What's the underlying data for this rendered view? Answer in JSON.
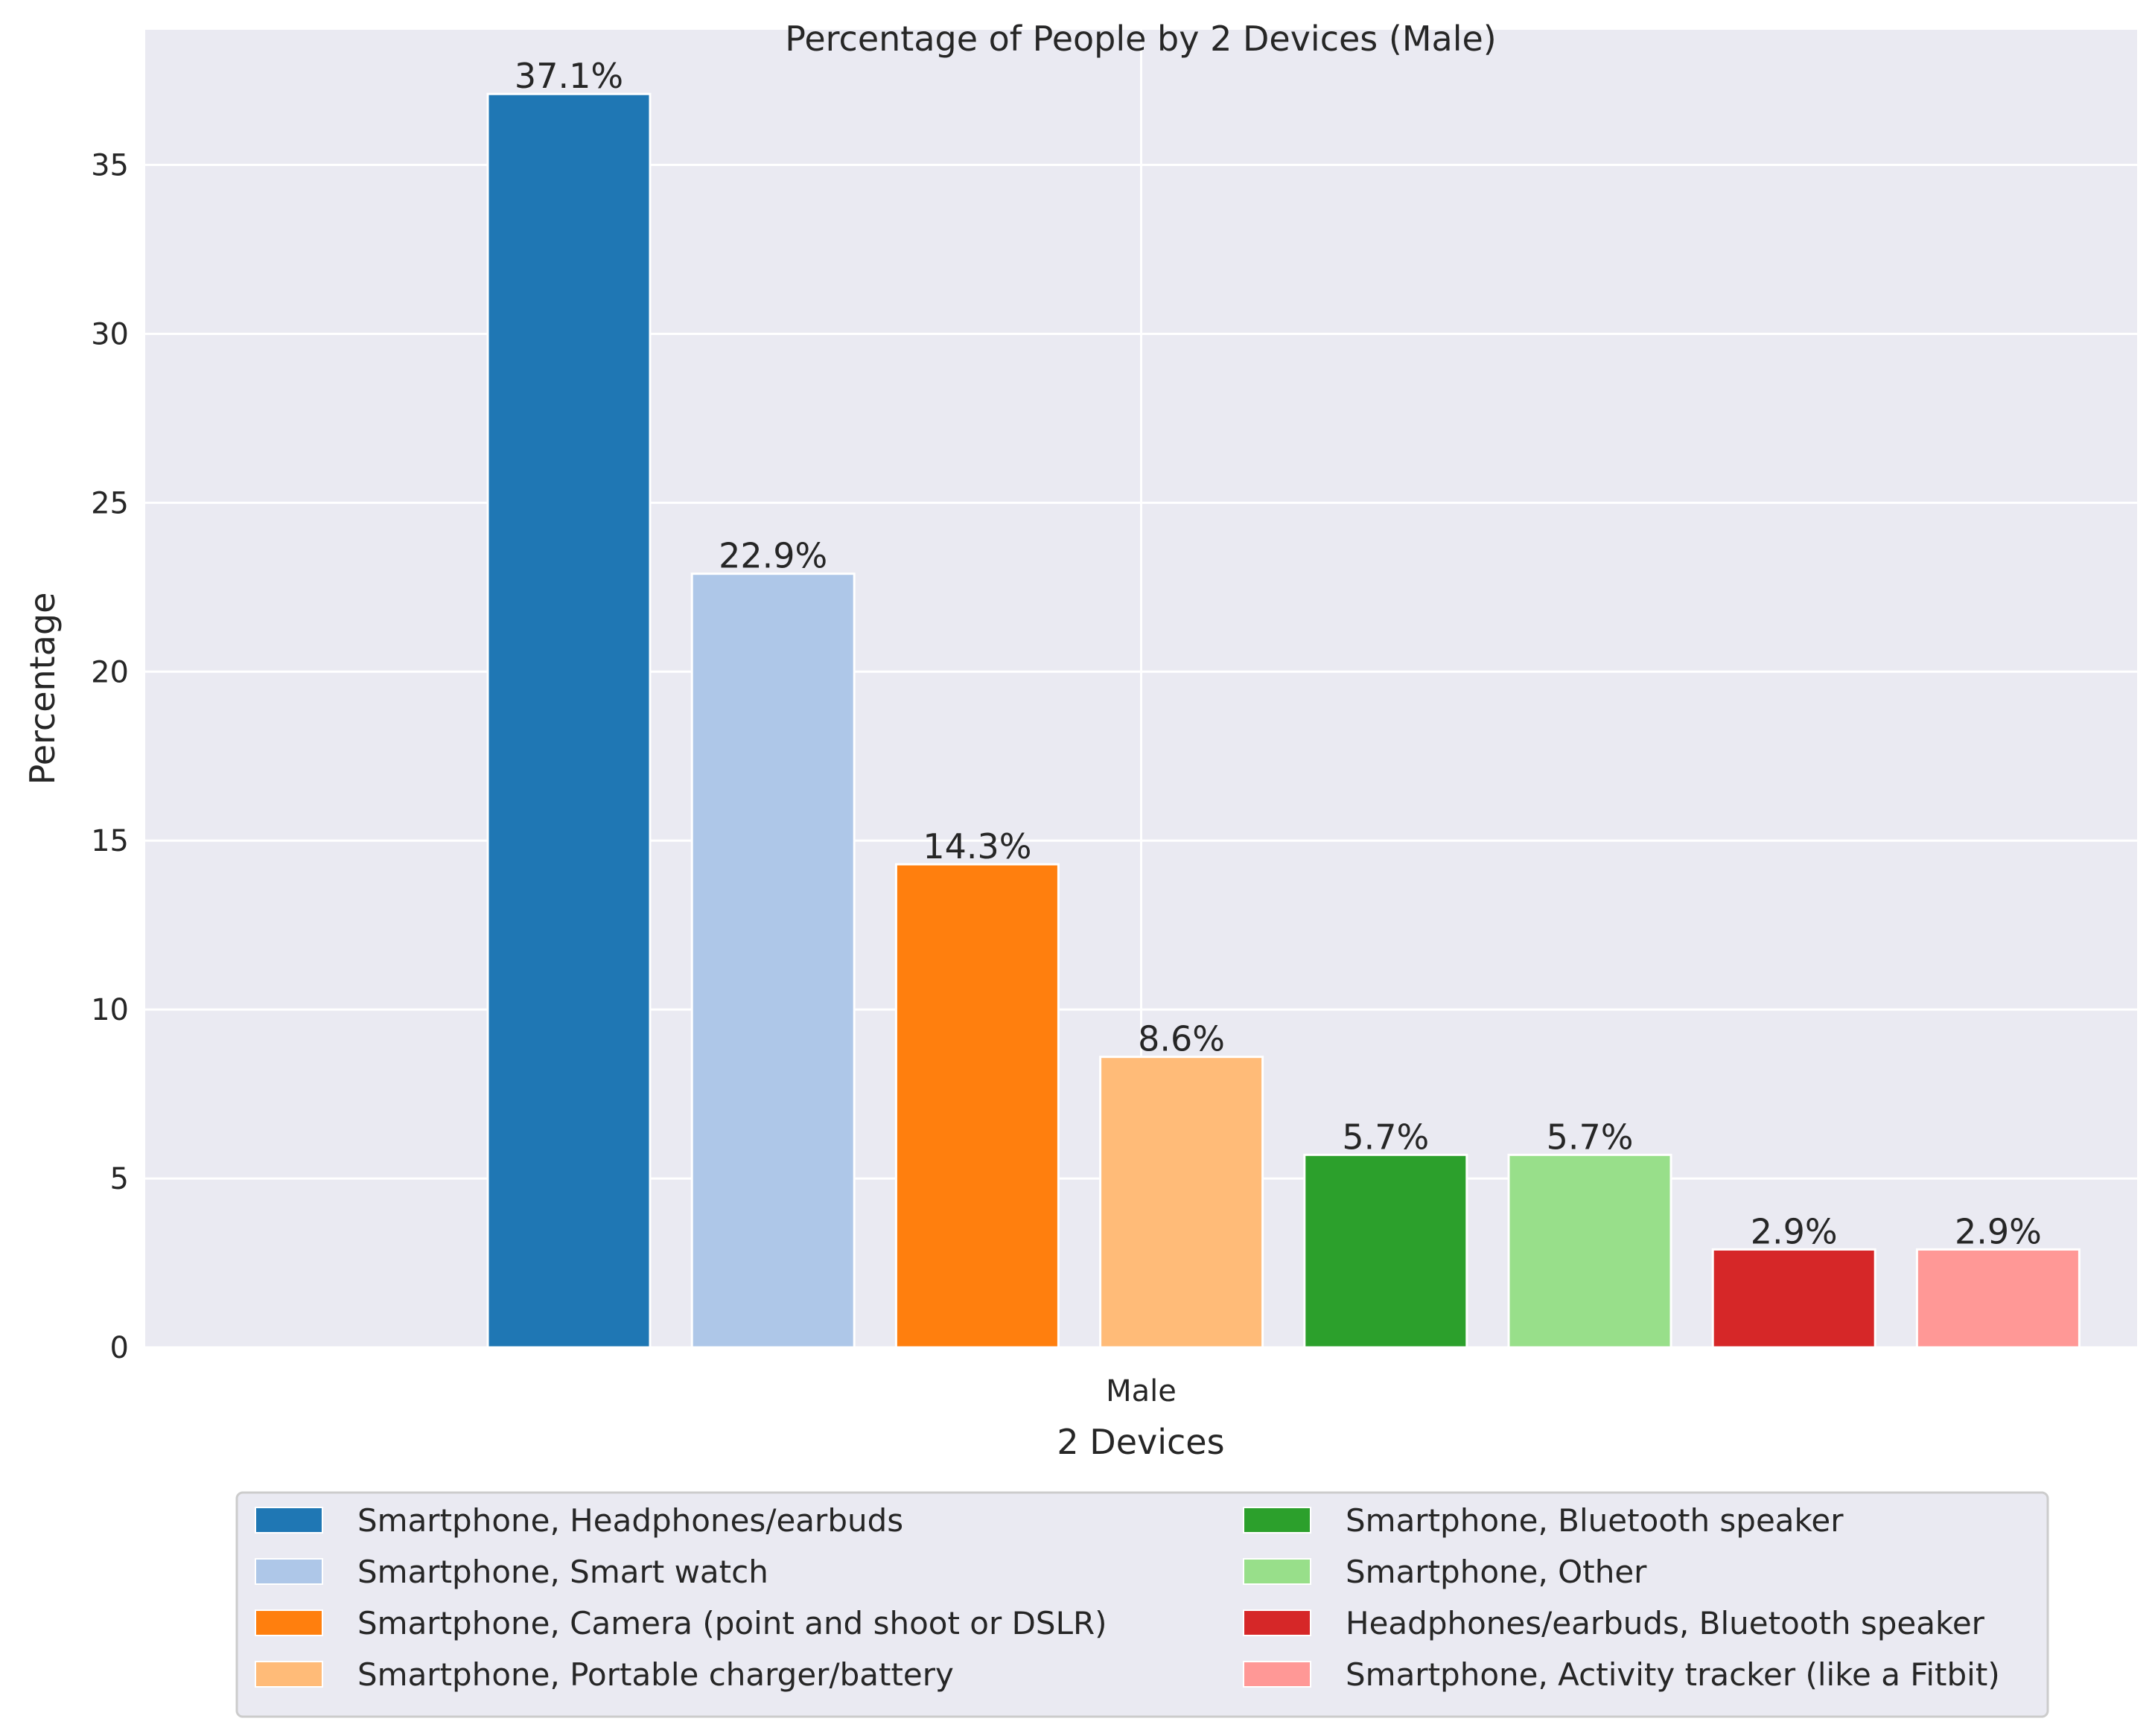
{
  "chart_data": {
    "type": "bar",
    "title": "Percentage of People by 2 Devices (Male)",
    "xlabel": "2 Devices",
    "ylabel": "Percentage",
    "categories": [
      "Male"
    ],
    "ylim": [
      0,
      39
    ],
    "yticks": [
      0,
      5,
      10,
      15,
      20,
      25,
      30,
      35
    ],
    "grid": true,
    "legend_placement": "bottom-center",
    "series": [
      {
        "name": "Smartphone, Headphones/earbuds",
        "value": 37.1,
        "label": "37.1%",
        "color": "#1f77b4"
      },
      {
        "name": "Smartphone, Smart watch",
        "value": 22.9,
        "label": "22.9%",
        "color": "#aec7e8"
      },
      {
        "name": "Smartphone, Camera (point and shoot or DSLR)",
        "value": 14.3,
        "label": "14.3%",
        "color": "#ff7f0e"
      },
      {
        "name": "Smartphone, Portable charger/battery",
        "value": 8.6,
        "label": "8.6%",
        "color": "#ffbb78"
      },
      {
        "name": "Smartphone, Bluetooth speaker",
        "value": 5.7,
        "label": "5.7%",
        "color": "#2ca02c"
      },
      {
        "name": "Smartphone, Other",
        "value": 5.7,
        "label": "5.7%",
        "color": "#98df8a"
      },
      {
        "name": "Headphones/earbuds, Bluetooth speaker",
        "value": 2.9,
        "label": "2.9%",
        "color": "#d62728"
      },
      {
        "name": "Smartphone, Activity tracker (like a Fitbit)",
        "value": 2.9,
        "label": "2.9%",
        "color": "#ff9896"
      }
    ]
  }
}
